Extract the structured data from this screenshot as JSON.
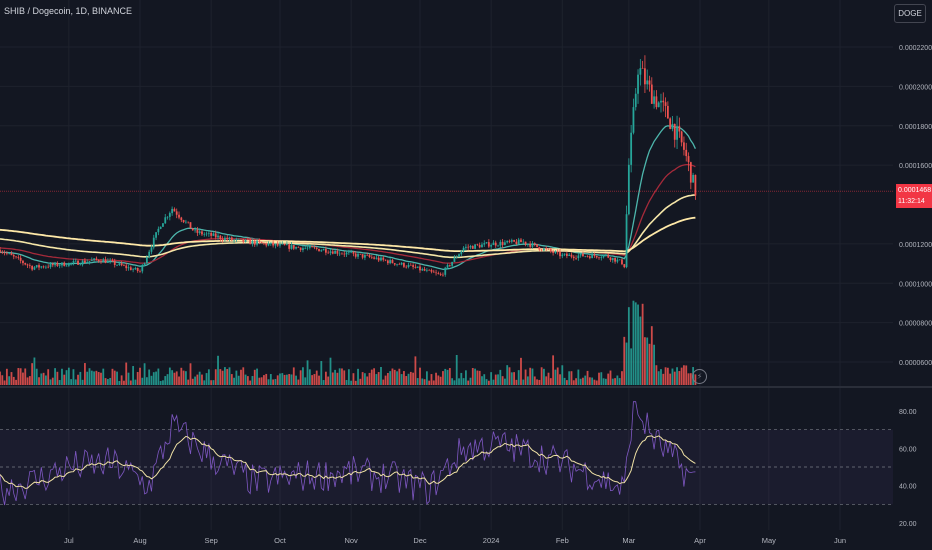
{
  "header": {
    "title": "SHIB / Dogecoin, 1D, BINANCE",
    "symbol_button": "DOGE"
  },
  "price_tag": {
    "price": "0.0001468",
    "countdown": "11:32:14"
  },
  "colors": {
    "background": "#131722",
    "up": "#26a69a",
    "down": "#ef5350",
    "ema_fast": "#4db6ac",
    "ema_mid": "#a52a3a",
    "ema_slow": "#f5e6a8",
    "ema_slowest": "#ffe9a8",
    "rsi": "#7e57c2",
    "rsi_ma": "#f0e2a5",
    "price_line": "#f23645"
  },
  "chart_data": [
    {
      "type": "candlestick",
      "title": "SHIB / Dogecoin, 1D, BINANCE",
      "y_ticks": [
        "0.0002200",
        "0.0002000",
        "0.0001800",
        "0.0001600",
        "0.0001200",
        "0.0001000",
        "0.0000800",
        "0.0000600"
      ],
      "y_tick_values": [
        0.00022,
        0.0002,
        0.00018,
        0.00016,
        0.00012,
        0.0001,
        8e-05,
        6e-05
      ],
      "ylim": [
        5e-05,
        0.00024
      ],
      "x_ticks": [
        "Jul",
        "Aug",
        "Sep",
        "Oct",
        "Nov",
        "Dec",
        "2024",
        "Feb",
        "Mar",
        "Apr",
        "May",
        "Jun"
      ],
      "last_price": 0.0001468,
      "approx_close_points": [
        {
          "date": "2023-06-01",
          "close": 0.000117
        },
        {
          "date": "2023-06-15",
          "close": 0.000108
        },
        {
          "date": "2023-07-01",
          "close": 0.00011
        },
        {
          "date": "2023-07-15",
          "close": 0.000112
        },
        {
          "date": "2023-08-01",
          "close": 0.000106
        },
        {
          "date": "2023-08-10",
          "close": 0.00013
        },
        {
          "date": "2023-08-15",
          "close": 0.000138
        },
        {
          "date": "2023-08-25",
          "close": 0.000126
        },
        {
          "date": "2023-09-10",
          "close": 0.000122
        },
        {
          "date": "2023-10-01",
          "close": 0.000119
        },
        {
          "date": "2023-10-20",
          "close": 0.000117
        },
        {
          "date": "2023-11-10",
          "close": 0.000113
        },
        {
          "date": "2023-11-25",
          "close": 0.000109
        },
        {
          "date": "2023-12-10",
          "close": 0.000104
        },
        {
          "date": "2023-12-20",
          "close": 0.000118
        },
        {
          "date": "2024-01-01",
          "close": 0.00012
        },
        {
          "date": "2024-01-15",
          "close": 0.000121
        },
        {
          "date": "2024-02-01",
          "close": 0.000114
        },
        {
          "date": "2024-02-20",
          "close": 0.000114
        },
        {
          "date": "2024-02-28",
          "close": 0.00011
        },
        {
          "date": "2024-03-01",
          "close": 0.00016
        },
        {
          "date": "2024-03-05",
          "close": 0.00021
        },
        {
          "date": "2024-03-10",
          "close": 0.000198
        },
        {
          "date": "2024-03-18",
          "close": 0.000185
        },
        {
          "date": "2024-03-25",
          "close": 0.000168
        },
        {
          "date": "2024-03-30",
          "close": 0.0001468
        }
      ]
    },
    {
      "type": "line",
      "title": "",
      "y_ticks": [
        "80.00",
        "60.00",
        "40.00",
        "20.00"
      ],
      "y_tick_values": [
        80,
        60,
        40,
        20
      ],
      "ylim": [
        18,
        86
      ],
      "bands": [
        70,
        50,
        30
      ],
      "approx_rsi_points": [
        {
          "date": "2023-06-01",
          "value": 38
        },
        {
          "date": "2023-06-15",
          "value": 42
        },
        {
          "date": "2023-07-01",
          "value": 50
        },
        {
          "date": "2023-07-20",
          "value": 52
        },
        {
          "date": "2023-08-05",
          "value": 40
        },
        {
          "date": "2023-08-15",
          "value": 72
        },
        {
          "date": "2023-09-01",
          "value": 55
        },
        {
          "date": "2023-09-20",
          "value": 42
        },
        {
          "date": "2023-10-10",
          "value": 45
        },
        {
          "date": "2023-11-01",
          "value": 47
        },
        {
          "date": "2023-11-20",
          "value": 44
        },
        {
          "date": "2023-12-05",
          "value": 38
        },
        {
          "date": "2023-12-20",
          "value": 60
        },
        {
          "date": "2024-01-05",
          "value": 62
        },
        {
          "date": "2024-01-20",
          "value": 57
        },
        {
          "date": "2024-02-10",
          "value": 48
        },
        {
          "date": "2024-02-28",
          "value": 38
        },
        {
          "date": "2024-03-03",
          "value": 84
        },
        {
          "date": "2024-03-12",
          "value": 65
        },
        {
          "date": "2024-03-22",
          "value": 52
        },
        {
          "date": "2024-03-30",
          "value": 42
        }
      ]
    }
  ]
}
